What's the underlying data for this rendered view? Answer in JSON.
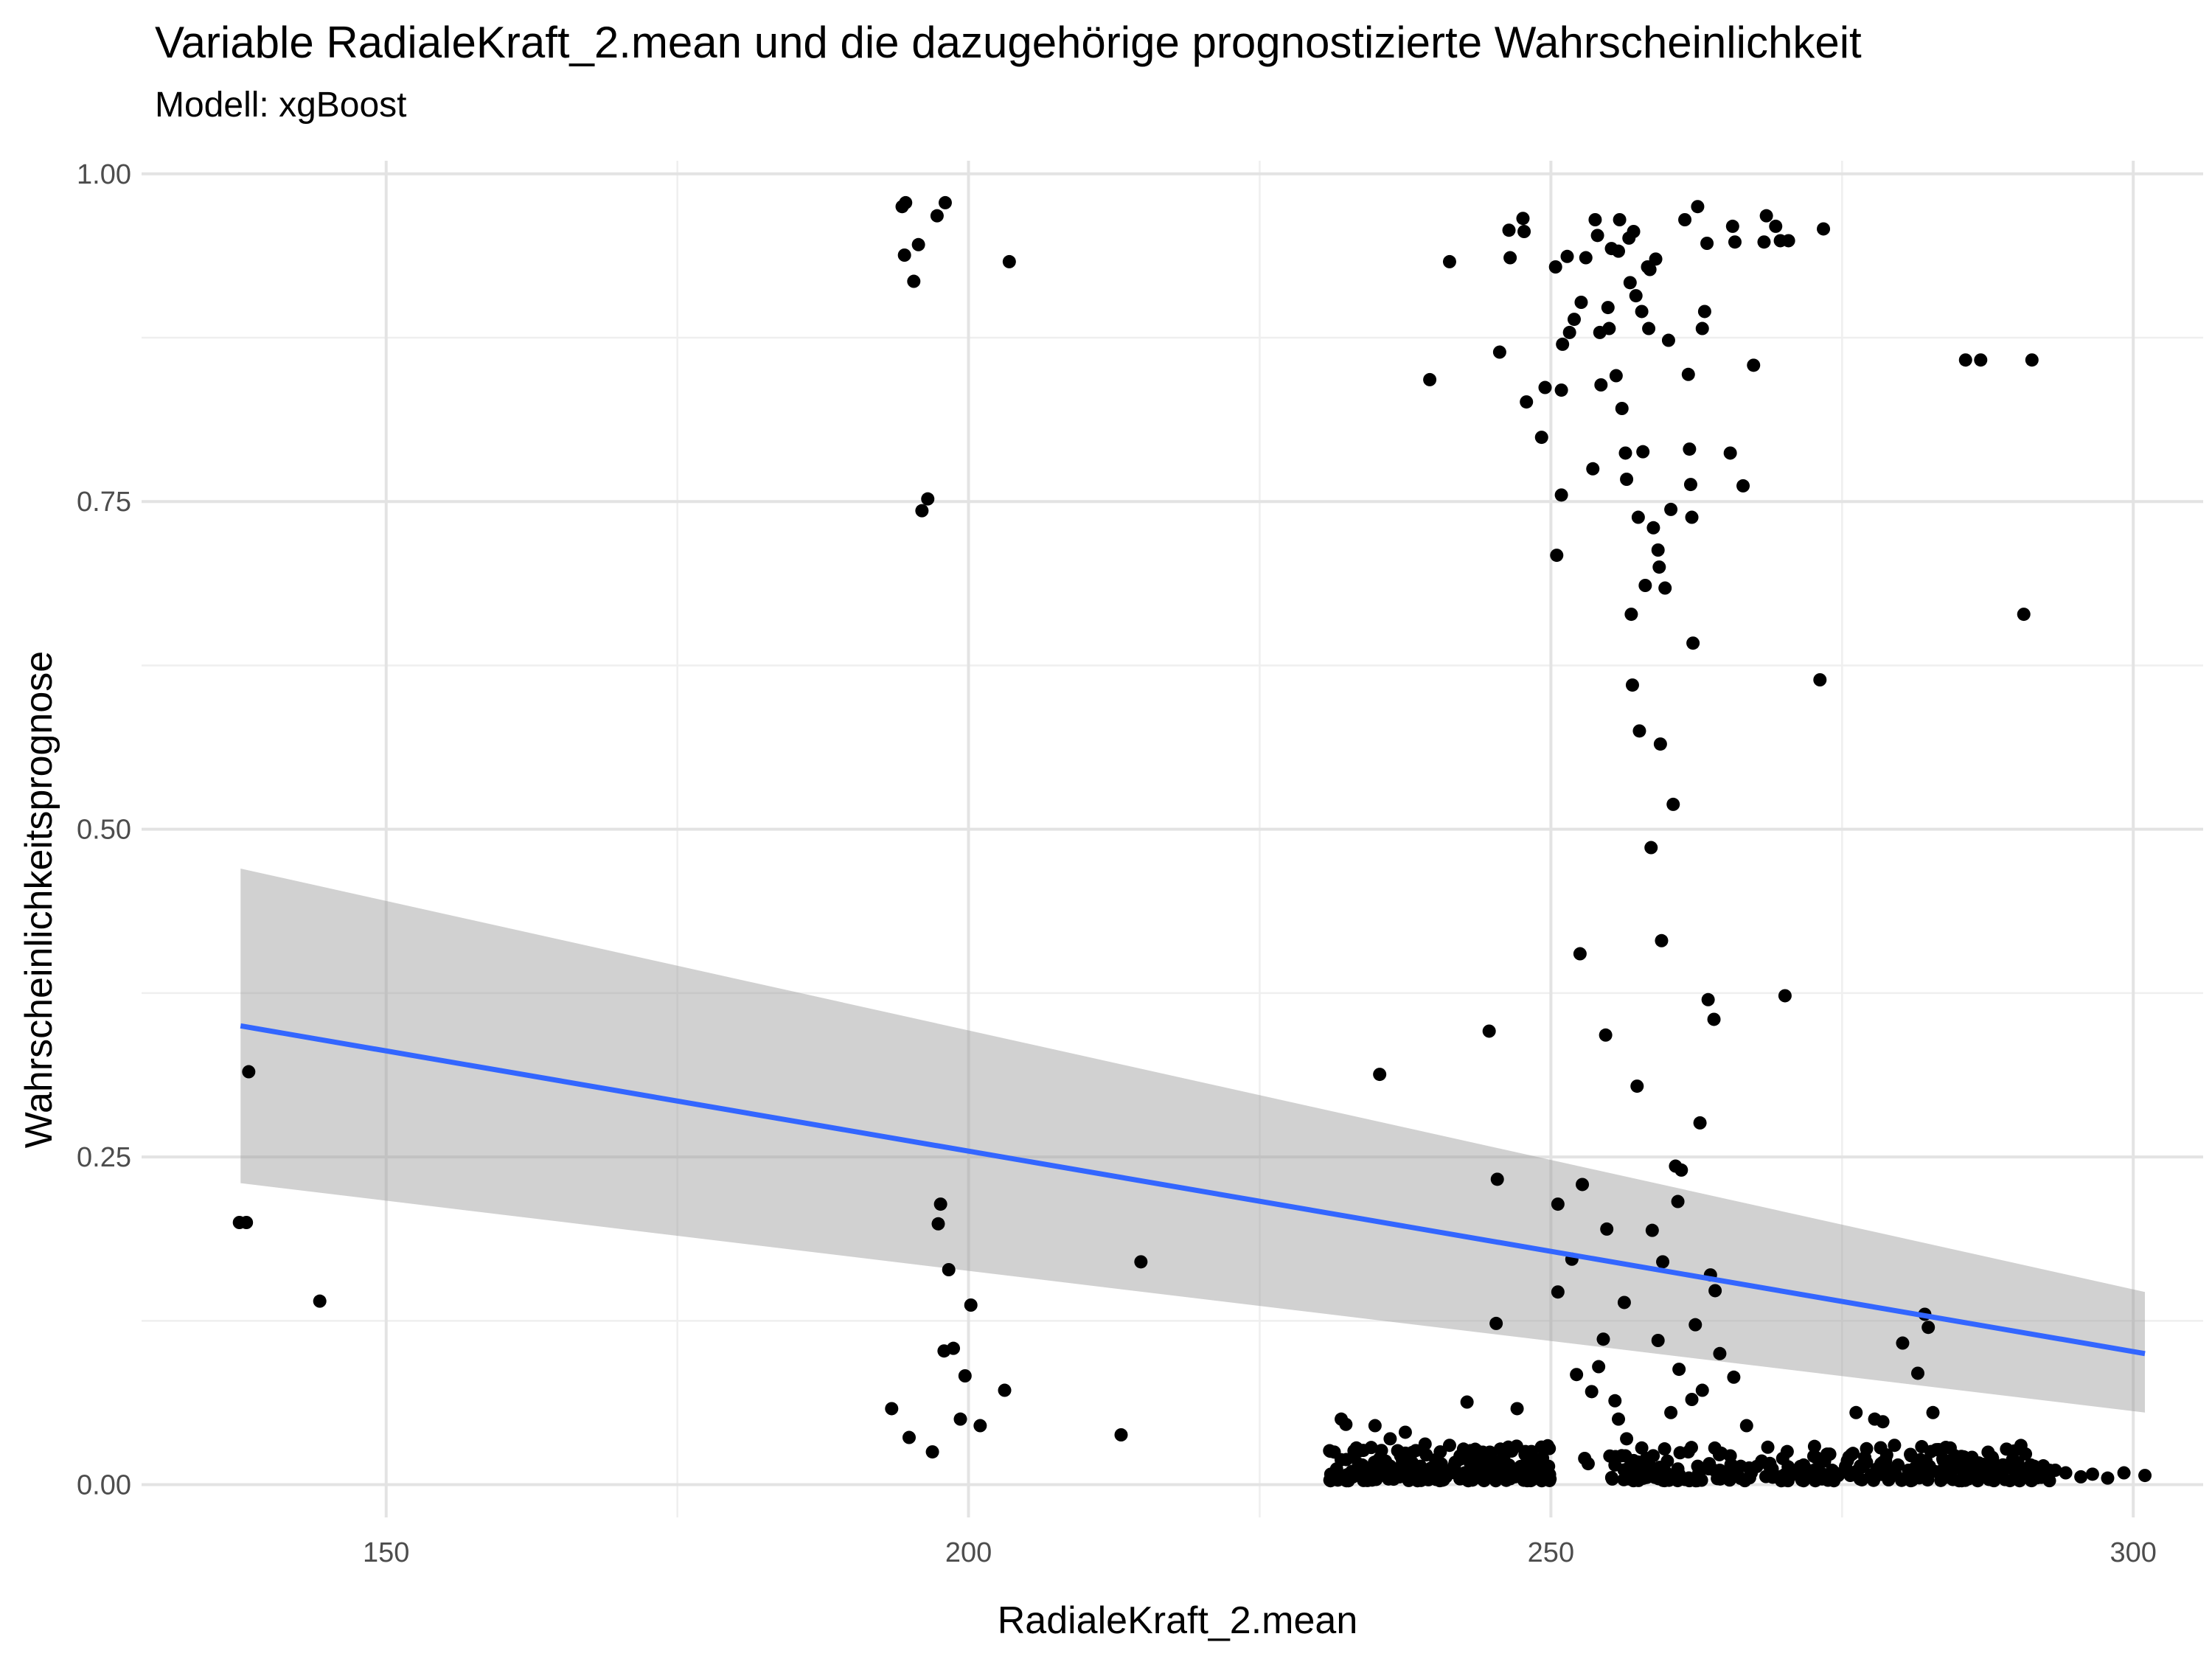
{
  "chart_data": {
    "type": "scatter",
    "title": "Variable RadialeKraft_2.mean und die dazugehörige prognostizierte Wahrscheinlichkeit",
    "subtitle": "Modell: xgBoost",
    "xlabel": "RadialeKraft_2.mean",
    "ylabel": "Wahrscheinlichkeitsprognose",
    "xlim": [
      129,
      306
    ],
    "ylim": [
      -0.025,
      1.01
    ],
    "x_ticks": [
      150,
      200,
      250,
      300
    ],
    "y_ticks": [
      0,
      0.25,
      0.5,
      0.75,
      1
    ],
    "x_tick_labels": [
      "150",
      "200",
      "250",
      "300"
    ],
    "y_tick_labels": [
      "0.00",
      "0.25",
      "0.50",
      "0.75",
      "1.00"
    ],
    "grid": true,
    "legend": "none",
    "colors": {
      "points": "#000000",
      "trend_line": "#3366FF",
      "confidence_band": "#999999",
      "grid": "#e5e5e5"
    },
    "trend": {
      "method": "linear",
      "x": [
        137.5,
        301
      ],
      "y": [
        0.35,
        0.1
      ],
      "ci_lower": [
        0.23,
        0.055
      ],
      "ci_upper": [
        0.47,
        0.147
      ]
    },
    "points": [
      [
        137.4,
        0.2
      ],
      [
        138.0,
        0.2
      ],
      [
        138.2,
        0.315
      ],
      [
        144.3,
        0.14
      ],
      [
        193.4,
        0.058
      ],
      [
        194.3,
        0.975
      ],
      [
        194.5,
        0.938
      ],
      [
        194.6,
        0.978
      ],
      [
        194.9,
        0.036
      ],
      [
        195.3,
        0.918
      ],
      [
        195.7,
        0.946
      ],
      [
        196.0,
        0.743
      ],
      [
        196.5,
        0.752
      ],
      [
        196.9,
        0.025
      ],
      [
        197.3,
        0.968
      ],
      [
        197.6,
        0.214
      ],
      [
        197.4,
        0.199
      ],
      [
        197.9,
        0.102
      ],
      [
        198.0,
        0.978
      ],
      [
        198.3,
        0.164
      ],
      [
        198.7,
        0.104
      ],
      [
        199.3,
        0.05
      ],
      [
        199.7,
        0.083
      ],
      [
        200.2,
        0.137
      ],
      [
        201.0,
        0.045
      ],
      [
        203.1,
        0.072
      ],
      [
        203.5,
        0.933
      ],
      [
        213.1,
        0.038
      ],
      [
        214.8,
        0.17
      ],
      [
        235.3,
        0.313
      ],
      [
        239.6,
        0.843
      ],
      [
        241.3,
        0.933
      ],
      [
        242.8,
        0.063
      ],
      [
        244.7,
        0.346
      ],
      [
        245.3,
        0.123
      ],
      [
        245.4,
        0.233
      ],
      [
        245.6,
        0.864
      ],
      [
        246.4,
        0.957
      ],
      [
        246.5,
        0.936
      ],
      [
        247.1,
        0.058
      ],
      [
        247.6,
        0.966
      ],
      [
        247.7,
        0.956
      ],
      [
        247.9,
        0.826
      ],
      [
        249.2,
        0.799
      ],
      [
        249.5,
        0.837
      ],
      [
        250.4,
        0.929
      ],
      [
        250.5,
        0.709
      ],
      [
        250.6,
        0.214
      ],
      [
        250.6,
        0.147
      ],
      [
        250.9,
        0.755
      ],
      [
        250.9,
        0.835
      ],
      [
        251.0,
        0.87
      ],
      [
        251.4,
        0.937
      ],
      [
        251.6,
        0.879
      ],
      [
        251.8,
        0.172
      ],
      [
        252.0,
        0.889
      ],
      [
        252.2,
        0.084
      ],
      [
        252.5,
        0.405
      ],
      [
        252.6,
        0.902
      ],
      [
        252.7,
        0.229
      ],
      [
        253.0,
        0.936
      ],
      [
        253.5,
        0.071
      ],
      [
        253.6,
        0.775
      ],
      [
        253.8,
        0.965
      ],
      [
        254.0,
        0.953
      ],
      [
        254.2,
        0.879
      ],
      [
        254.3,
        0.839
      ],
      [
        254.5,
        0.111
      ],
      [
        254.7,
        0.343
      ],
      [
        254.8,
        0.195
      ],
      [
        254.9,
        0.898
      ],
      [
        255.0,
        0.882
      ],
      [
        255.2,
        0.943
      ],
      [
        255.5,
        0.064
      ],
      [
        255.6,
        0.846
      ],
      [
        255.8,
        0.941
      ],
      [
        255.9,
        0.965
      ],
      [
        256.1,
        0.821
      ],
      [
        256.3,
        0.139
      ],
      [
        256.4,
        0.787
      ],
      [
        256.5,
        0.767
      ],
      [
        256.7,
        0.951
      ],
      [
        256.8,
        0.917
      ],
      [
        256.9,
        0.664
      ],
      [
        257.0,
        0.61
      ],
      [
        257.1,
        0.956
      ],
      [
        257.3,
        0.907
      ],
      [
        257.4,
        0.304
      ],
      [
        257.5,
        0.738
      ],
      [
        257.6,
        0.575
      ],
      [
        257.8,
        0.895
      ],
      [
        257.9,
        0.788
      ],
      [
        258.1,
        0.686
      ],
      [
        258.3,
        0.929
      ],
      [
        258.4,
        0.882
      ],
      [
        258.5,
        0.927
      ],
      [
        258.6,
        0.486
      ],
      [
        258.7,
        0.194
      ],
      [
        258.8,
        0.73
      ],
      [
        259.0,
        0.935
      ],
      [
        259.2,
        0.713
      ],
      [
        259.3,
        0.7
      ],
      [
        259.4,
        0.565
      ],
      [
        259.5,
        0.415
      ],
      [
        259.6,
        0.17
      ],
      [
        259.8,
        0.684
      ],
      [
        260.1,
        0.873
      ],
      [
        260.3,
        0.744
      ],
      [
        260.5,
        0.519
      ],
      [
        260.7,
        0.243
      ],
      [
        260.9,
        0.216
      ],
      [
        261.2,
        0.24
      ],
      [
        261.5,
        0.965
      ],
      [
        261.8,
        0.847
      ],
      [
        261.9,
        0.79
      ],
      [
        262.0,
        0.763
      ],
      [
        262.1,
        0.738
      ],
      [
        262.2,
        0.642
      ],
      [
        262.4,
        0.122
      ],
      [
        262.6,
        0.975
      ],
      [
        262.8,
        0.276
      ],
      [
        263.0,
        0.882
      ],
      [
        263.2,
        0.895
      ],
      [
        263.4,
        0.947
      ],
      [
        263.5,
        0.37
      ],
      [
        263.7,
        0.16
      ],
      [
        264.0,
        0.355
      ],
      [
        264.1,
        0.148
      ],
      [
        265.4,
        0.787
      ],
      [
        265.6,
        0.96
      ],
      [
        265.8,
        0.948
      ],
      [
        266.5,
        0.762
      ],
      [
        267.4,
        0.854
      ],
      [
        268.3,
        0.948
      ],
      [
        268.5,
        0.968
      ],
      [
        269.3,
        0.96
      ],
      [
        269.7,
        0.949
      ],
      [
        270.1,
        0.373
      ],
      [
        270.4,
        0.949
      ],
      [
        273.1,
        0.614
      ],
      [
        273.4,
        0.958
      ],
      [
        285.6,
        0.858
      ],
      [
        286.9,
        0.858
      ],
      [
        290.6,
        0.664
      ],
      [
        291.3,
        0.858
      ],
      [
        256.5,
        0.035
      ],
      [
        257.8,
        0.028
      ],
      [
        259.2,
        0.11
      ],
      [
        260.3,
        0.055
      ],
      [
        261.0,
        0.088
      ],
      [
        262.1,
        0.065
      ],
      [
        263.0,
        0.072
      ],
      [
        264.5,
        0.1
      ],
      [
        265.7,
        0.082
      ],
      [
        266.8,
        0.045
      ],
      [
        255.8,
        0.05
      ],
      [
        254.1,
        0.09
      ],
      [
        253.2,
        0.016
      ],
      [
        252.9,
        0.02
      ],
      [
        276.2,
        0.055
      ],
      [
        277.8,
        0.05
      ],
      [
        278.5,
        0.048
      ],
      [
        279.5,
        0.03
      ],
      [
        280.2,
        0.108
      ],
      [
        281.5,
        0.085
      ],
      [
        282.1,
        0.13
      ],
      [
        282.4,
        0.12
      ],
      [
        282.8,
        0.055
      ],
      [
        231.1,
        0.008
      ],
      [
        231.6,
        0.012
      ],
      [
        232.0,
        0.05
      ],
      [
        232.4,
        0.046
      ],
      [
        232.9,
        0.01
      ],
      [
        233.3,
        0.028
      ],
      [
        233.8,
        0.015
      ],
      [
        234.4,
        0.007
      ],
      [
        234.9,
        0.045
      ],
      [
        235.3,
        0.02
      ],
      [
        235.8,
        0.018
      ],
      [
        236.2,
        0.035
      ],
      [
        236.7,
        0.012
      ],
      [
        237.1,
        0.022
      ],
      [
        237.5,
        0.04
      ],
      [
        237.9,
        0.009
      ],
      [
        238.4,
        0.026
      ],
      [
        238.8,
        0.014
      ],
      [
        239.2,
        0.031
      ],
      [
        239.6,
        0.008
      ],
      [
        240.1,
        0.019
      ],
      [
        240.5,
        0.025
      ],
      [
        240.9,
        0.011
      ],
      [
        241.3,
        0.03
      ],
      [
        241.7,
        0.013
      ],
      [
        242.2,
        0.022
      ],
      [
        242.6,
        0.009
      ],
      [
        243.1,
        0.017
      ],
      [
        243.5,
        0.027
      ],
      [
        244.2,
        0.012
      ],
      [
        244.9,
        0.02
      ],
      [
        245.6,
        0.008
      ],
      [
        246.4,
        0.015
      ],
      [
        247.2,
        0.011
      ],
      [
        248.1,
        0.018
      ],
      [
        248.9,
        0.009
      ],
      [
        249.8,
        0.014
      ],
      [
        233.0,
        0.006
      ],
      [
        234.0,
        0.01
      ],
      [
        235.0,
        0.004
      ],
      [
        236.0,
        0.009
      ],
      [
        237.0,
        0.006
      ],
      [
        238.0,
        0.012
      ],
      [
        239.0,
        0.005
      ],
      [
        240.0,
        0.01
      ],
      [
        241.0,
        0.006
      ],
      [
        242.0,
        0.008
      ],
      [
        255.5,
        0.015
      ],
      [
        256.4,
        0.022
      ],
      [
        257.3,
        0.01
      ],
      [
        258.2,
        0.02
      ],
      [
        259.1,
        0.008
      ],
      [
        260.0,
        0.018
      ],
      [
        260.9,
        0.012
      ],
      [
        261.8,
        0.025
      ],
      [
        262.7,
        0.009
      ],
      [
        263.6,
        0.016
      ],
      [
        264.5,
        0.011
      ],
      [
        265.4,
        0.022
      ],
      [
        266.3,
        0.014
      ],
      [
        267.2,
        0.009
      ],
      [
        268.1,
        0.018
      ],
      [
        269.0,
        0.012
      ],
      [
        269.9,
        0.02
      ],
      [
        270.8,
        0.008
      ],
      [
        271.7,
        0.015
      ],
      [
        272.6,
        0.011
      ],
      [
        273.5,
        0.018
      ],
      [
        274.4,
        0.009
      ],
      [
        275.3,
        0.014
      ],
      [
        276.2,
        0.01
      ],
      [
        277.1,
        0.017
      ],
      [
        278.0,
        0.012
      ],
      [
        278.9,
        0.008
      ],
      [
        279.8,
        0.015
      ],
      [
        280.7,
        0.011
      ],
      [
        281.6,
        0.009
      ],
      [
        282.5,
        0.014
      ],
      [
        283.4,
        0.01
      ],
      [
        284.3,
        0.008
      ],
      [
        285.2,
        0.012
      ],
      [
        286.1,
        0.009
      ],
      [
        287.0,
        0.011
      ],
      [
        287.9,
        0.008
      ],
      [
        288.8,
        0.01
      ],
      [
        289.7,
        0.012
      ],
      [
        290.6,
        0.009
      ],
      [
        291.5,
        0.014
      ],
      [
        292.4,
        0.008
      ],
      [
        293.3,
        0.011
      ],
      [
        294.2,
        0.009
      ],
      [
        295.5,
        0.006
      ],
      [
        296.5,
        0.008
      ],
      [
        297.8,
        0.005
      ],
      [
        299.2,
        0.009
      ],
      [
        301.0,
        0.007
      ]
    ],
    "dense_clusters": [
      {
        "x_range": [
          231,
          250
        ],
        "y_range": [
          0.003,
          0.03
        ],
        "count": 170
      },
      {
        "x_range": [
          255,
          293
        ],
        "y_range": [
          0.003,
          0.03
        ],
        "count": 230
      }
    ]
  }
}
